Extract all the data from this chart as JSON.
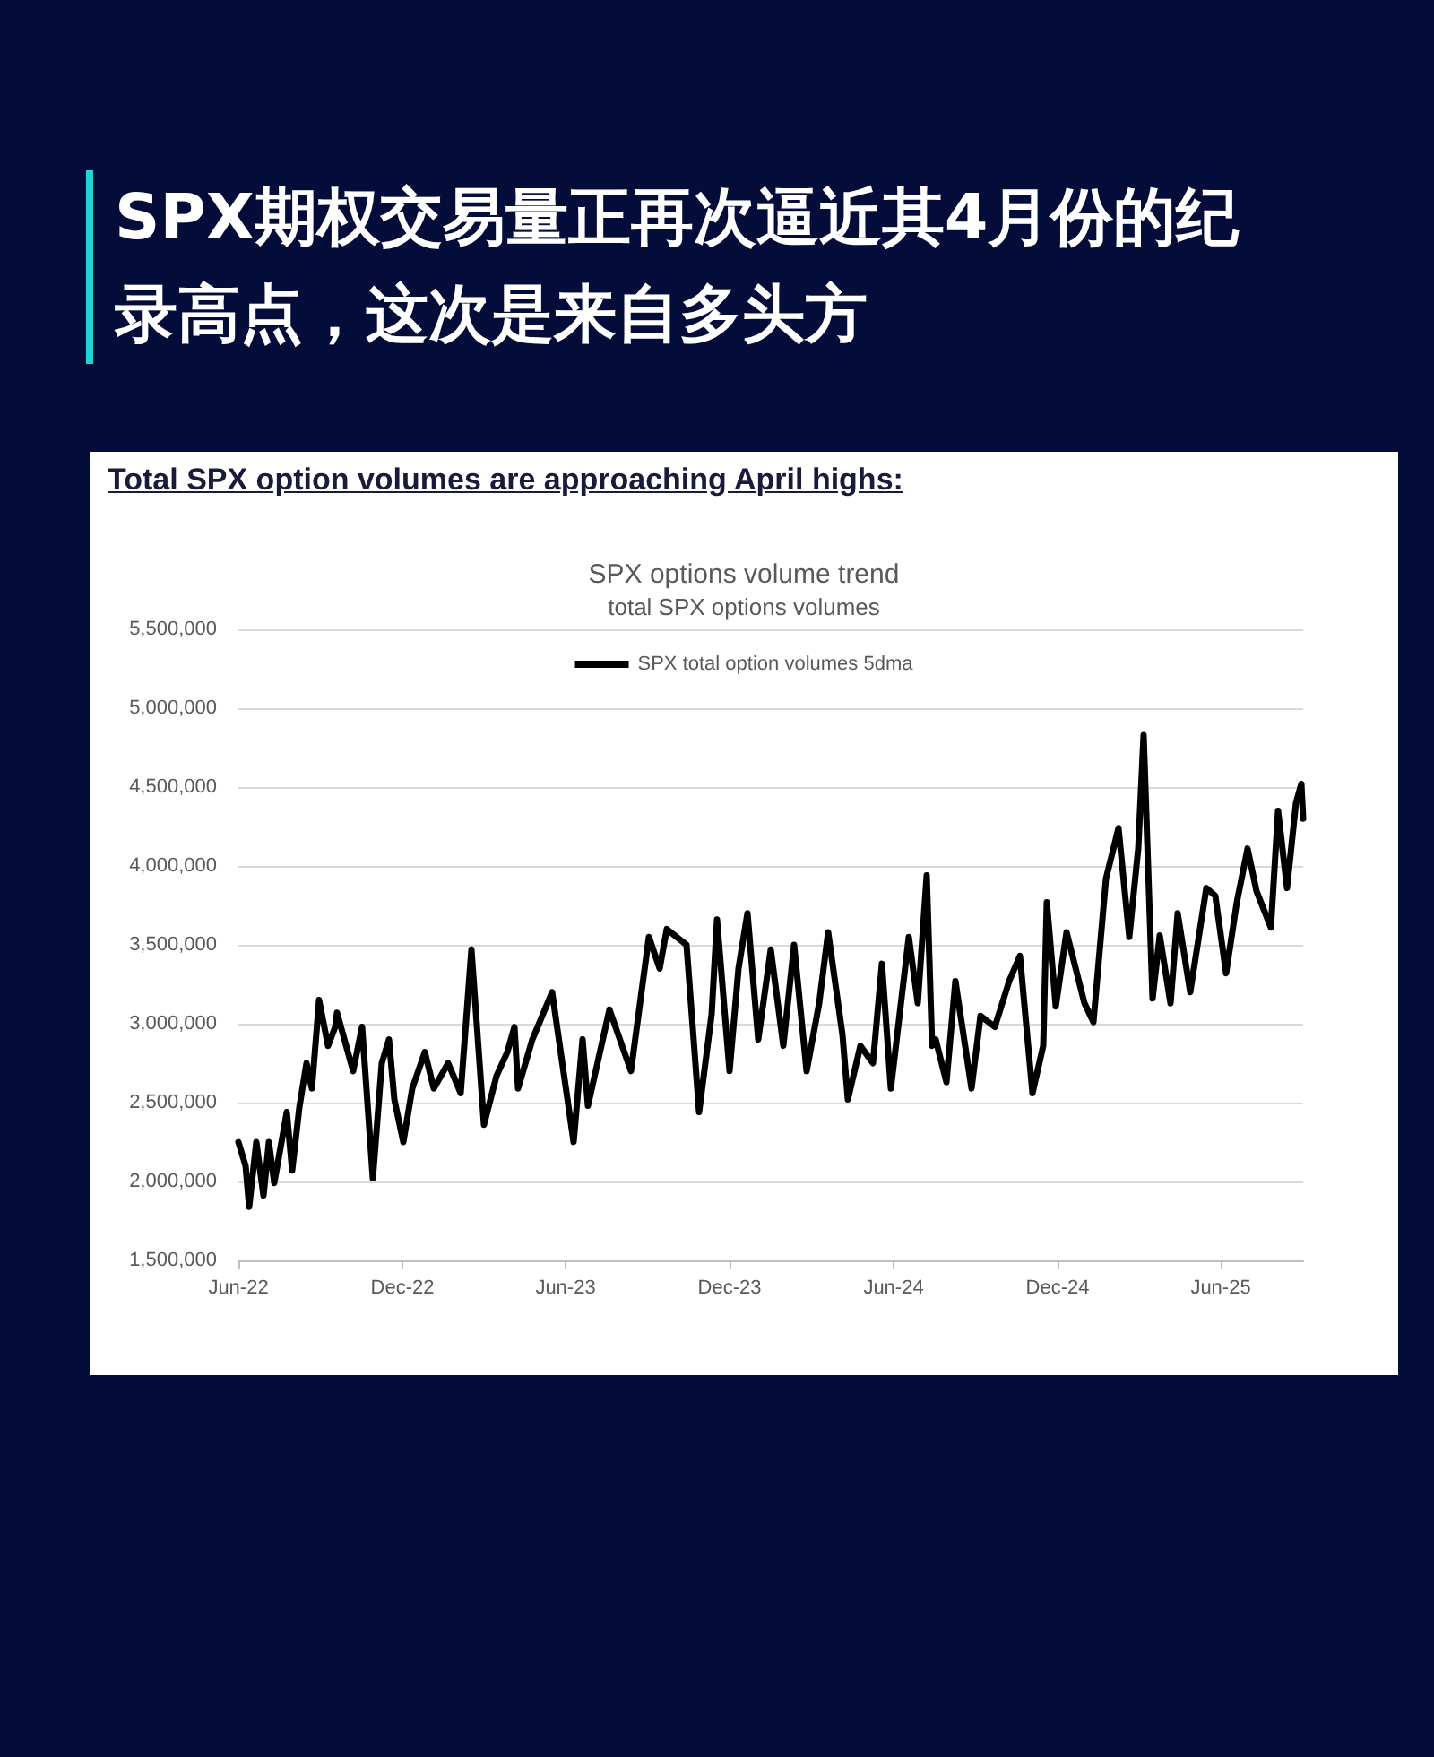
{
  "chart_data": {
    "type": "line",
    "title": "SPX options volume trend",
    "subtitle": "total SPX options volumes",
    "annotations": [
      "SPX期权交易量正再次逼近其4月份的纪录高点，这次是来自多头方",
      "Total SPX option volumes are approaching April highs:"
    ],
    "x": [
      "2022-06-01",
      "2022-06-09",
      "2022-06-13",
      "2022-06-21",
      "2022-06-29",
      "2022-07-05",
      "2022-07-11",
      "2022-07-25",
      "2022-07-31",
      "2022-08-08",
      "2022-08-16",
      "2022-08-22",
      "2022-08-30",
      "2022-09-09",
      "2022-09-17",
      "2022-09-19",
      "2022-10-07",
      "2022-10-17",
      "2022-10-29",
      "2022-11-08",
      "2022-11-16",
      "2022-11-22",
      "2022-12-02",
      "2022-12-12",
      "2022-12-26",
      "2023-01-05",
      "2023-01-21",
      "2023-02-04",
      "2023-02-16",
      "2023-03-02",
      "2023-03-16",
      "2023-03-28",
      "2023-04-05",
      "2023-04-09",
      "2023-04-25",
      "2023-05-17",
      "2023-06-10",
      "2023-06-20",
      "2023-06-26",
      "2023-07-20",
      "2023-08-13",
      "2023-09-02",
      "2023-09-14",
      "2023-09-22",
      "2023-10-14",
      "2023-10-28",
      "2023-11-11",
      "2023-11-17",
      "2023-12-01",
      "2023-12-11",
      "2023-12-21",
      "2024-01-02",
      "2024-01-16",
      "2024-01-30",
      "2024-02-11",
      "2024-02-25",
      "2024-03-10",
      "2024-03-20",
      "2024-04-05",
      "2024-04-11",
      "2024-04-25",
      "2024-05-09",
      "2024-05-19",
      "2024-05-29",
      "2024-06-18",
      "2024-06-28",
      "2024-07-08",
      "2024-07-14",
      "2024-07-18",
      "2024-07-30",
      "2024-08-09",
      "2024-08-27",
      "2024-09-06",
      "2024-09-22",
      "2024-10-08",
      "2024-10-20",
      "2024-11-03",
      "2024-11-15",
      "2024-11-19",
      "2024-11-29",
      "2024-12-11",
      "2024-12-31",
      "2025-01-10",
      "2025-01-24",
      "2025-02-07",
      "2025-02-19",
      "2025-03-01",
      "2025-03-07",
      "2025-03-17",
      "2025-03-25",
      "2025-04-06",
      "2025-04-14",
      "2025-04-28",
      "2025-05-16",
      "2025-05-26",
      "2025-06-07",
      "2025-06-19",
      "2025-07-01",
      "2025-07-11",
      "2025-07-27",
      "2025-08-04",
      "2025-08-14",
      "2025-08-24",
      "2025-08-30",
      "2025-09-01"
    ],
    "series": [
      {
        "name": "SPX total option volumes 5dma",
        "color": "#000000",
        "values": [
          2250000,
          2100000,
          1840000,
          2250000,
          1910000,
          2250000,
          1990000,
          2440000,
          2070000,
          2470000,
          2750000,
          2590000,
          3150000,
          2860000,
          2980000,
          3070000,
          2700000,
          2980000,
          2020000,
          2750000,
          2900000,
          2520000,
          2250000,
          2590000,
          2820000,
          2590000,
          2750000,
          2560000,
          3470000,
          2360000,
          2670000,
          2820000,
          2980000,
          2590000,
          2900000,
          3200000,
          2250000,
          2900000,
          2480000,
          3090000,
          2700000,
          3550000,
          3350000,
          3600000,
          3500000,
          2440000,
          3060000,
          3660000,
          2700000,
          3350000,
          3700000,
          2900000,
          3470000,
          2860000,
          3500000,
          2700000,
          3130000,
          3580000,
          2930000,
          2520000,
          2860000,
          2750000,
          3380000,
          2590000,
          3550000,
          3130000,
          3940000,
          2860000,
          2900000,
          2630000,
          3270000,
          2590000,
          3050000,
          2980000,
          3270000,
          3430000,
          2560000,
          2860000,
          3770000,
          3110000,
          3580000,
          3130000,
          3010000,
          3920000,
          4240000,
          3550000,
          4110000,
          4830000,
          3160000,
          3560000,
          3130000,
          3700000,
          3200000,
          3860000,
          3810000,
          3320000,
          3770000,
          4110000,
          3840000,
          3610000,
          4350000,
          3860000,
          4400000,
          4520000,
          4300000
        ]
      }
    ],
    "xlim": [
      "2022-06-01",
      "2025-09-01"
    ],
    "xticks": [
      {
        "value": "2022-06-01",
        "label": "Jun-22"
      },
      {
        "value": "2022-12-01",
        "label": "Dec-22"
      },
      {
        "value": "2023-06-01",
        "label": "Jun-23"
      },
      {
        "value": "2023-12-01",
        "label": "Dec-23"
      },
      {
        "value": "2024-06-01",
        "label": "Jun-24"
      },
      {
        "value": "2024-12-01",
        "label": "Dec-24"
      },
      {
        "value": "2025-06-01",
        "label": "Jun-25"
      }
    ],
    "ylim": [
      1500000,
      5500000
    ],
    "yticks": [
      {
        "value": 1500000,
        "label": "1,500,000"
      },
      {
        "value": 2000000,
        "label": "2,000,000"
      },
      {
        "value": 2500000,
        "label": "2,500,000"
      },
      {
        "value": 3000000,
        "label": "3,000,000"
      },
      {
        "value": 3500000,
        "label": "3,500,000"
      },
      {
        "value": 4000000,
        "label": "4,000,000"
      },
      {
        "value": 4500000,
        "label": "4,500,000"
      },
      {
        "value": 5000000,
        "label": "5,000,000"
      },
      {
        "value": 5500000,
        "label": "5,500,000"
      }
    ],
    "grid": "y",
    "legend": "top",
    "marker": "none",
    "line_style": "solid"
  }
}
